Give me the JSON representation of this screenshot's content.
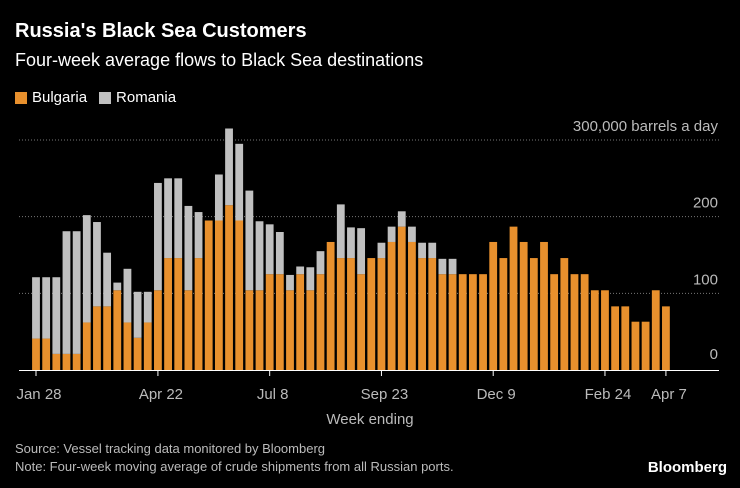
{
  "title": "Russia's Black Sea Customers",
  "subtitle": "Four-week average flows to Black Sea destinations",
  "colors": {
    "bulgaria": "#e8902d",
    "romania": "#c0c0c0",
    "background": "#000000",
    "grid": "#777777"
  },
  "source": "Source: Vessel tracking data monitored by Bloomberg",
  "note": "Note: Four-week moving average of crude shipments from all Russian ports.",
  "brand": "Bloomberg",
  "chart_data": {
    "type": "bar",
    "stacked": true,
    "title": "Russia's Black Sea Customers",
    "subtitle": "Four-week average flows to Black Sea destinations",
    "xlabel": "Week ending",
    "ylabel": "",
    "ylim": [
      0,
      300000
    ],
    "yticks": [
      {
        "value": 0,
        "label": "0"
      },
      {
        "value": 100000,
        "label": "100"
      },
      {
        "value": 200000,
        "label": "200"
      },
      {
        "value": 300000,
        "label": "300,000 barrels a day"
      }
    ],
    "xticks": [
      {
        "index": 0,
        "label": "Jan 28"
      },
      {
        "index": 12,
        "label": "Apr 22"
      },
      {
        "index": 23,
        "label": "Jul 8"
      },
      {
        "index": 34,
        "label": "Sep 23"
      },
      {
        "index": 45,
        "label": "Dec 9"
      },
      {
        "index": 56,
        "label": "Feb 24"
      },
      {
        "index": 62,
        "label": "Apr 7"
      }
    ],
    "legend_position": "top-left",
    "series": [
      {
        "name": "Bulgaria",
        "color": "#e8902d",
        "values": [
          41000,
          41000,
          21000,
          21000,
          21000,
          62000,
          83000,
          83000,
          104000,
          62000,
          42000,
          62000,
          104000,
          146000,
          146000,
          104000,
          146000,
          195000,
          195000,
          215000,
          195000,
          104000,
          104000,
          125000,
          125000,
          104000,
          125000,
          104000,
          125000,
          167000,
          146000,
          146000,
          125000,
          146000,
          146000,
          167000,
          187000,
          167000,
          146000,
          146000,
          125000,
          125000,
          125000,
          125000,
          125000,
          167000,
          146000,
          187000,
          167000,
          146000,
          167000,
          125000,
          146000,
          125000,
          125000,
          104000,
          104000,
          83000,
          83000,
          63000,
          63000,
          104000,
          83000
        ]
      },
      {
        "name": "Romania",
        "color": "#c0c0c0",
        "values": [
          80000,
          80000,
          100000,
          160000,
          160000,
          140000,
          110000,
          70000,
          10000,
          70000,
          60000,
          40000,
          140000,
          104000,
          104000,
          110000,
          60000,
          0,
          60000,
          100000,
          100000,
          130000,
          90000,
          65000,
          55000,
          20000,
          10000,
          30000,
          30000,
          0,
          70000,
          40000,
          60000,
          0,
          20000,
          20000,
          20000,
          20000,
          20000,
          20000,
          20000,
          20000,
          0,
          0,
          0,
          0,
          0,
          0,
          0,
          0,
          0,
          0,
          0,
          0,
          0,
          0,
          0,
          0,
          0,
          0,
          0,
          0,
          0
        ]
      }
    ]
  }
}
